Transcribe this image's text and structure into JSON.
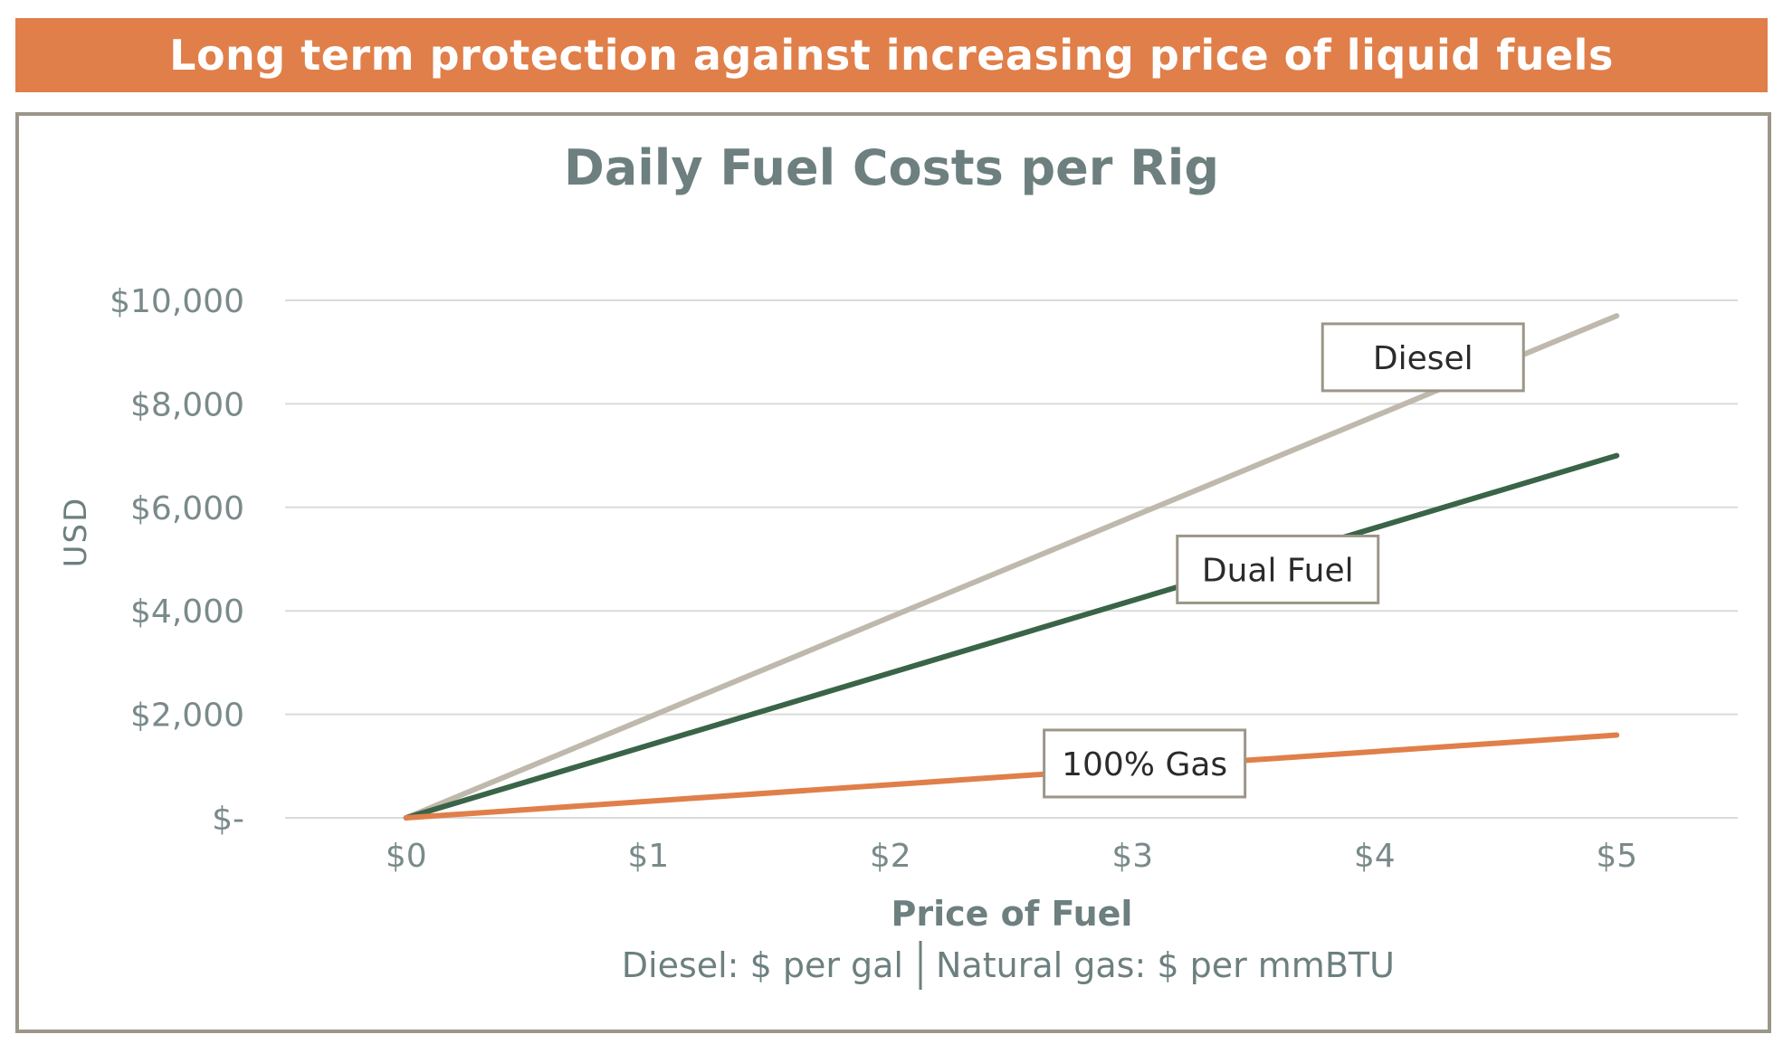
{
  "banner": {
    "text": "Long term protection against increasing price of liquid fuels",
    "color": "#e07f4a"
  },
  "chart_data": {
    "type": "line",
    "title": "Daily Fuel Costs per Rig",
    "xlabel": "Price of Fuel",
    "xlabel_sub_left": "Diesel: $ per gal",
    "xlabel_sub_right": "Natural gas: $ per mmBTU",
    "ylabel": "USD",
    "x": [
      0,
      5
    ],
    "x_tick_values": [
      0,
      1,
      2,
      3,
      4,
      5
    ],
    "x_tick_labels": [
      "$0",
      "$1",
      "$2",
      "$3",
      "$4",
      "$5"
    ],
    "y_tick_values": [
      0,
      2000,
      4000,
      6000,
      8000,
      10000
    ],
    "y_tick_labels": [
      "$-",
      "$2,000",
      "$4,000",
      "$6,000",
      "$8,000",
      "$10,000"
    ],
    "xlim": [
      -0.5,
      5.5
    ],
    "ylim": [
      0,
      10000
    ],
    "grid": true,
    "series": [
      {
        "name": "Diesel",
        "label": "Diesel",
        "color": "#bfb9ad",
        "values": [
          0,
          9700
        ],
        "label_at_x": 4.2,
        "label_at_y": 8900
      },
      {
        "name": "Dual Fuel",
        "label": "Dual Fuel",
        "color": "#3a6448",
        "values": [
          0,
          7000
        ],
        "label_at_x": 3.6,
        "label_at_y": 4800
      },
      {
        "name": "100% Gas",
        "label": "100% Gas",
        "color": "#e07f4a",
        "values": [
          0,
          1600
        ],
        "label_at_x": 3.05,
        "label_at_y": 1050
      }
    ]
  }
}
